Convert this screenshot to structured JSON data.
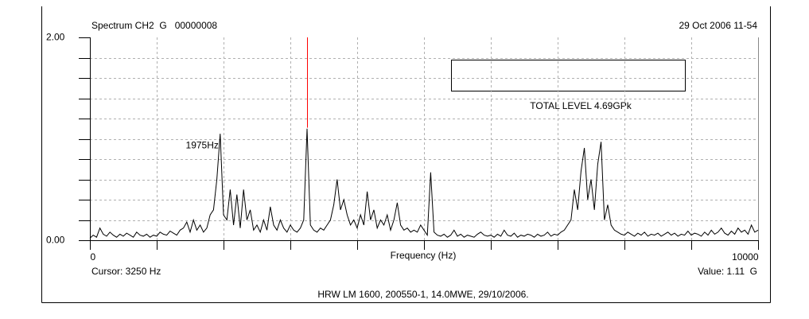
{
  "chart_data": {
    "type": "line",
    "title": "Spectrum CH2  G   00000008",
    "date": "29 Oct 2006 11-54",
    "xlabel": "Frequency (Hz)",
    "footer": "HRW LM 1600, 200550-1, 14.0MWE, 29/10/2006.",
    "cursor_label": "Cursor: 3250 Hz",
    "value_label": "Value: 1.11  G",
    "cursor": {
      "x": 3250,
      "y": 1.11,
      "color": "#ff0000"
    },
    "annotations": [
      {
        "text": "1975Hz",
        "x": 1975,
        "y": 1.05
      },
      {
        "text": "TOTAL LEVEL 4.69GPk"
      }
    ],
    "xlim": [
      0,
      10000
    ],
    "ylim": [
      0,
      2
    ],
    "xticks": [
      0,
      10000
    ],
    "yticks": [
      {
        "value": 0,
        "label": "0.00"
      },
      {
        "value": 2,
        "label": "2.00"
      }
    ],
    "x_minor_ticks": [
      1000,
      2000,
      3000,
      4000,
      5000,
      6000,
      7000,
      8000,
      9000
    ],
    "y_minor_ticks": [
      0.2,
      0.4,
      0.6,
      0.8,
      1.0,
      1.2,
      1.4,
      1.6,
      1.8
    ],
    "grid": true,
    "x": [
      0,
      50,
      100,
      150,
      200,
      250,
      300,
      350,
      400,
      450,
      500,
      550,
      600,
      650,
      700,
      750,
      800,
      850,
      900,
      950,
      1000,
      1050,
      1100,
      1150,
      1200,
      1250,
      1300,
      1350,
      1400,
      1450,
      1500,
      1550,
      1600,
      1650,
      1700,
      1750,
      1800,
      1850,
      1900,
      1950,
      2000,
      2050,
      2100,
      2150,
      2200,
      2250,
      2300,
      2350,
      2400,
      2450,
      2500,
      2550,
      2600,
      2650,
      2700,
      2750,
      2800,
      2850,
      2900,
      2950,
      3000,
      3050,
      3100,
      3150,
      3200,
      3250,
      3300,
      3350,
      3400,
      3450,
      3500,
      3550,
      3600,
      3650,
      3700,
      3750,
      3800,
      3850,
      3900,
      3950,
      4000,
      4050,
      4100,
      4150,
      4200,
      4250,
      4300,
      4350,
      4400,
      4450,
      4500,
      4550,
      4600,
      4650,
      4700,
      4750,
      4800,
      4850,
      4900,
      4950,
      5000,
      5050,
      5100,
      5150,
      5200,
      5250,
      5300,
      5350,
      5400,
      5450,
      5500,
      5550,
      5600,
      5650,
      5700,
      5750,
      5800,
      5850,
      5900,
      5950,
      6000,
      6050,
      6100,
      6150,
      6200,
      6250,
      6300,
      6350,
      6400,
      6450,
      6500,
      6550,
      6600,
      6650,
      6700,
      6750,
      6800,
      6850,
      6900,
      6950,
      7000,
      7050,
      7100,
      7150,
      7200,
      7250,
      7300,
      7350,
      7400,
      7450,
      7500,
      7550,
      7600,
      7650,
      7700,
      7750,
      7800,
      7850,
      7900,
      7950,
      8000,
      8050,
      8100,
      8150,
      8200,
      8250,
      8300,
      8350,
      8400,
      8450,
      8500,
      8550,
      8600,
      8650,
      8700,
      8750,
      8800,
      8850,
      8900,
      8950,
      9000,
      9050,
      9100,
      9150,
      9200,
      9250,
      9300,
      9350,
      9400,
      9450,
      9500,
      9550,
      9600,
      9650,
      9700,
      9750,
      9800,
      9850,
      9900,
      9950,
      10000
    ],
    "series": [
      {
        "color": "#000000",
        "values": [
          0.02,
          0.05,
          0.03,
          0.12,
          0.06,
          0.04,
          0.08,
          0.05,
          0.03,
          0.06,
          0.04,
          0.07,
          0.05,
          0.03,
          0.08,
          0.05,
          0.04,
          0.06,
          0.03,
          0.05,
          0.04,
          0.08,
          0.06,
          0.05,
          0.09,
          0.07,
          0.05,
          0.1,
          0.12,
          0.18,
          0.08,
          0.2,
          0.1,
          0.15,
          0.08,
          0.12,
          0.25,
          0.3,
          0.6,
          1.05,
          0.25,
          0.2,
          0.5,
          0.15,
          0.45,
          0.12,
          0.5,
          0.2,
          0.3,
          0.1,
          0.15,
          0.08,
          0.2,
          0.1,
          0.33,
          0.15,
          0.1,
          0.2,
          0.12,
          0.08,
          0.15,
          0.1,
          0.08,
          0.12,
          0.2,
          1.1,
          0.15,
          0.1,
          0.08,
          0.12,
          0.1,
          0.15,
          0.2,
          0.35,
          0.6,
          0.3,
          0.4,
          0.25,
          0.15,
          0.2,
          0.12,
          0.25,
          0.15,
          0.48,
          0.2,
          0.3,
          0.12,
          0.2,
          0.15,
          0.25,
          0.1,
          0.2,
          0.37,
          0.15,
          0.1,
          0.12,
          0.08,
          0.1,
          0.08,
          0.15,
          0.1,
          0.05,
          0.67,
          0.08,
          0.05,
          0.04,
          0.06,
          0.03,
          0.05,
          0.1,
          0.04,
          0.06,
          0.03,
          0.05,
          0.04,
          0.03,
          0.06,
          0.08,
          0.05,
          0.04,
          0.05,
          0.03,
          0.06,
          0.04,
          0.1,
          0.05,
          0.04,
          0.07,
          0.03,
          0.05,
          0.04,
          0.06,
          0.05,
          0.03,
          0.06,
          0.04,
          0.05,
          0.08,
          0.04,
          0.06,
          0.05,
          0.08,
          0.1,
          0.15,
          0.2,
          0.5,
          0.3,
          0.68,
          0.91,
          0.4,
          0.6,
          0.3,
          0.75,
          0.97,
          0.2,
          0.35,
          0.15,
          0.1,
          0.08,
          0.06,
          0.05,
          0.08,
          0.06,
          0.04,
          0.07,
          0.05,
          0.08,
          0.04,
          0.06,
          0.05,
          0.07,
          0.04,
          0.06,
          0.08,
          0.05,
          0.07,
          0.04,
          0.06,
          0.05,
          0.09,
          0.05,
          0.07,
          0.06,
          0.04,
          0.08,
          0.05,
          0.1,
          0.06,
          0.08,
          0.12,
          0.07,
          0.05,
          0.09,
          0.06,
          0.12,
          0.08,
          0.1,
          0.06,
          0.15,
          0.08,
          0.1
        ]
      }
    ]
  }
}
